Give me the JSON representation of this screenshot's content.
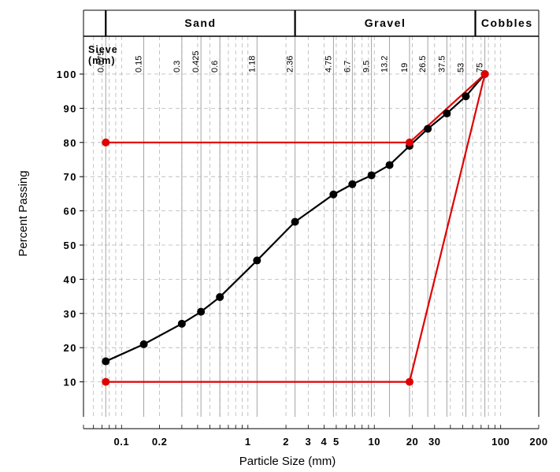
{
  "chart_data": {
    "type": "line",
    "x_scale": "log",
    "xlim": [
      0.05,
      200
    ],
    "ylim": [
      0,
      100
    ],
    "grid": true,
    "xlabel": "Particle Size (mm)",
    "ylabel": "Percent Passing",
    "y_ticks": [
      10,
      20,
      30,
      40,
      50,
      60,
      70,
      80,
      90,
      100
    ],
    "x_ticks": [
      {
        "value": 0.1,
        "label": "0.1"
      },
      {
        "value": 0.2,
        "label": "0.2"
      },
      {
        "value": 1,
        "label": "1"
      },
      {
        "value": 2,
        "label": "2"
      },
      {
        "value": 3,
        "label": "3"
      },
      {
        "value": 4,
        "label": "4"
      },
      {
        "value": 5,
        "label": "5"
      },
      {
        "value": 10,
        "label": "10"
      },
      {
        "value": 20,
        "label": "20"
      },
      {
        "value": 30,
        "label": "30"
      },
      {
        "value": 100,
        "label": "100"
      },
      {
        "value": 200,
        "label": "200"
      }
    ],
    "sieve_title": "Sieve\n(mm)",
    "sieves": [
      "0.075",
      "0.15",
      "0.3",
      "0.425",
      "0.6",
      "1.18",
      "2.36",
      "4.75",
      "6.7",
      "9.5",
      "13.2",
      "19",
      "26.5",
      "37.5",
      "53",
      "75"
    ],
    "sieve_values": [
      0.075,
      0.15,
      0.3,
      0.425,
      0.6,
      1.18,
      2.36,
      4.75,
      6.7,
      9.5,
      13.2,
      19,
      26.5,
      37.5,
      53,
      75
    ],
    "soil_classes": [
      {
        "label": "Sand",
        "from": 0.075,
        "to": 2.36
      },
      {
        "label": "Gravel",
        "from": 2.36,
        "to": 63
      },
      {
        "label": "Cobbles",
        "from": 63,
        "to": 200
      }
    ],
    "series": [
      {
        "color": "#000000",
        "points": [
          {
            "x": 0.075,
            "y": 16
          },
          {
            "x": 0.15,
            "y": 21
          },
          {
            "x": 0.3,
            "y": 27
          },
          {
            "x": 0.425,
            "y": 30.5
          },
          {
            "x": 0.6,
            "y": 34.8
          },
          {
            "x": 1.18,
            "y": 45.5
          },
          {
            "x": 2.36,
            "y": 56.8
          },
          {
            "x": 4.75,
            "y": 64.8
          },
          {
            "x": 6.7,
            "y": 67.8
          },
          {
            "x": 9.5,
            "y": 70.4
          },
          {
            "x": 13.2,
            "y": 73.4
          },
          {
            "x": 19,
            "y": 79
          },
          {
            "x": 26.5,
            "y": 84
          },
          {
            "x": 37.5,
            "y": 88.5
          },
          {
            "x": 53,
            "y": 93.5
          },
          {
            "x": 75,
            "y": 100
          }
        ]
      },
      {
        "color": "#e00000",
        "points": [
          {
            "x": 0.075,
            "y": 80
          },
          {
            "x": 19,
            "y": 80
          },
          {
            "x": 75,
            "y": 100
          },
          {
            "x": 19,
            "y": 10
          },
          {
            "x": 0.075,
            "y": 10
          }
        ]
      }
    ]
  }
}
